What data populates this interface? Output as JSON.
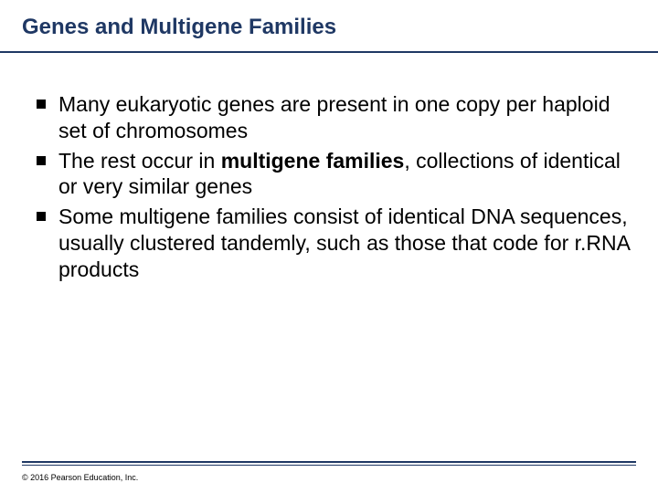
{
  "title": "Genes and Multigene Families",
  "title_color": "#1f3864",
  "title_fontsize": 24,
  "title_fontweight": "bold",
  "underline_color": "#1f3864",
  "bullets": [
    {
      "segments": [
        {
          "text": "Many eukaryotic genes are present in one copy per haploid set of chromosomes",
          "bold": false
        }
      ]
    },
    {
      "segments": [
        {
          "text": "The rest occur in ",
          "bold": false
        },
        {
          "text": "multigene families",
          "bold": true
        },
        {
          "text": ", collections of identical or very similar genes",
          "bold": false
        }
      ]
    },
    {
      "segments": [
        {
          "text": "Some multigene families consist of identical DNA sequences, usually clustered tandemly, such as those that code for r.RNA products",
          "bold": false
        }
      ]
    }
  ],
  "bullet_marker_color": "#000000",
  "bullet_text_fontsize": 23,
  "bullet_text_color": "#000000",
  "footer_line_color": "#1f3864",
  "copyright": "© 2016 Pearson Education, Inc.",
  "copyright_fontsize": 9,
  "background_color": "#ffffff"
}
